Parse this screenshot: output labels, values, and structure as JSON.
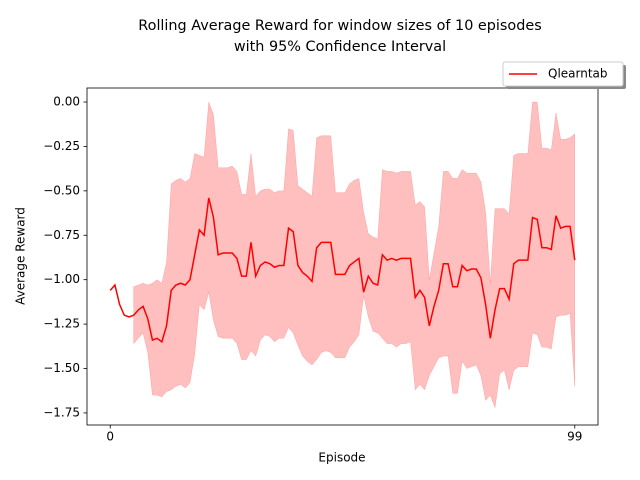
{
  "chart_data": {
    "type": "line",
    "title": [
      "Rolling Average Reward for window sizes of 10 episodes",
      "with 95% Confidence Interval"
    ],
    "x_label": "Episode",
    "y_label": "Average Reward",
    "x": [
      0,
      1,
      2,
      3,
      4,
      5,
      6,
      7,
      8,
      9,
      10,
      11,
      12,
      13,
      14,
      15,
      16,
      17,
      18,
      19,
      20,
      21,
      22,
      23,
      24,
      25,
      26,
      27,
      28,
      29,
      30,
      31,
      32,
      33,
      34,
      35,
      36,
      37,
      38,
      39,
      40,
      41,
      42,
      43,
      44,
      45,
      46,
      47,
      48,
      49,
      50,
      51,
      52,
      53,
      54,
      55,
      56,
      57,
      58,
      59,
      60,
      61,
      62,
      63,
      64,
      65,
      66,
      67,
      68,
      69,
      70,
      71,
      72,
      73,
      74,
      75,
      76,
      77,
      78,
      79,
      80,
      81,
      82,
      83,
      84,
      85,
      86,
      87,
      88,
      89,
      90,
      91,
      92,
      93,
      94,
      95,
      96,
      97,
      98,
      99
    ],
    "xlim": [
      -4.95,
      103.95
    ],
    "xticks": [
      0,
      99
    ],
    "ylim": [
      -1.818,
      0.079
    ],
    "yticks": [
      {
        "value": 0,
        "label": "0.00"
      },
      {
        "value": -0.25,
        "label": "−0.25"
      },
      {
        "value": -0.5,
        "label": "−0.50"
      },
      {
        "value": -0.75,
        "label": "−0.75"
      },
      {
        "value": -1,
        "label": "−1.00"
      },
      {
        "value": -1.25,
        "label": "−1.25"
      },
      {
        "value": -1.5,
        "label": "−1.50"
      },
      {
        "value": -1.75,
        "label": "−1.75"
      }
    ],
    "legend": "upper right outside",
    "series": [
      {
        "name": "Qlearntab",
        "color": "#ff0000",
        "values": [
          -1.06,
          -1.03,
          -1.14,
          -1.2,
          -1.21,
          -1.2,
          -1.17,
          -1.15,
          -1.22,
          -1.34,
          -1.33,
          -1.35,
          -1.26,
          -1.06,
          -1.03,
          -1.02,
          -1.03,
          -1.0,
          -0.86,
          -0.72,
          -0.75,
          -0.54,
          -0.65,
          -0.86,
          -0.85,
          -0.85,
          -0.85,
          -0.88,
          -0.98,
          -0.98,
          -0.79,
          -0.98,
          -0.92,
          -0.9,
          -0.91,
          -0.93,
          -0.92,
          -0.92,
          -0.71,
          -0.73,
          -0.92,
          -0.96,
          -0.98,
          -1.01,
          -0.82,
          -0.79,
          -0.79,
          -0.79,
          -0.97,
          -0.97,
          -0.97,
          -0.92,
          -0.9,
          -0.88,
          -1.07,
          -0.98,
          -1.02,
          -1.03,
          -0.86,
          -0.89,
          -0.88,
          -0.89,
          -0.88,
          -0.88,
          -0.88,
          -1.1,
          -1.06,
          -1.1,
          -1.26,
          -1.15,
          -1.06,
          -0.91,
          -0.91,
          -1.04,
          -1.04,
          -0.92,
          -0.95,
          -0.94,
          -0.94,
          -0.99,
          -1.14,
          -1.33,
          -1.17,
          -1.05,
          -1.05,
          -1.11,
          -0.91,
          -0.89,
          -0.89,
          -0.89,
          -0.65,
          -0.66,
          -0.82,
          -0.82,
          -0.83,
          -0.64,
          -0.71,
          -0.7,
          -0.7,
          -0.89
        ]
      }
    ],
    "band": {
      "color": "#ff0000",
      "opacity": 0.25,
      "upper": [
        null,
        null,
        null,
        null,
        null,
        -1.04,
        -1.03,
        -1.02,
        -1.03,
        -1.02,
        -1.0,
        -1.02,
        -0.9,
        -0.46,
        -0.44,
        -0.43,
        -0.45,
        -0.43,
        -0.29,
        -0.3,
        -0.31,
        0.0,
        -0.07,
        -0.37,
        -0.37,
        -0.37,
        -0.36,
        -0.39,
        -0.52,
        -0.52,
        -0.29,
        -0.53,
        -0.5,
        -0.49,
        -0.49,
        -0.51,
        -0.5,
        -0.5,
        -0.15,
        -0.16,
        -0.47,
        -0.49,
        -0.51,
        -0.53,
        -0.2,
        -0.19,
        -0.19,
        -0.19,
        -0.51,
        -0.51,
        -0.51,
        -0.46,
        -0.44,
        -0.43,
        -0.62,
        -0.74,
        -0.76,
        -0.77,
        -0.38,
        -0.39,
        -0.39,
        -0.4,
        -0.39,
        -0.39,
        -0.39,
        -0.58,
        -0.56,
        -0.59,
        -1.0,
        -0.85,
        -0.7,
        -0.39,
        -0.39,
        -0.43,
        -0.43,
        -0.38,
        -0.4,
        -0.4,
        -0.4,
        -0.45,
        -0.62,
        -1.02,
        -0.6,
        -0.6,
        -0.6,
        -0.63,
        -0.3,
        -0.29,
        -0.29,
        -0.29,
        0.0,
        0.0,
        -0.26,
        -0.26,
        -0.27,
        -0.06,
        -0.21,
        -0.21,
        -0.2,
        -0.18
      ],
      "lower": [
        null,
        null,
        null,
        null,
        null,
        -1.36,
        -1.33,
        -1.3,
        -1.41,
        -1.65,
        -1.65,
        -1.66,
        -1.63,
        -1.62,
        -1.6,
        -1.59,
        -1.61,
        -1.58,
        -1.42,
        -1.14,
        -1.17,
        -1.07,
        -1.23,
        -1.32,
        -1.33,
        -1.33,
        -1.33,
        -1.36,
        -1.45,
        -1.45,
        -1.4,
        -1.43,
        -1.34,
        -1.31,
        -1.32,
        -1.35,
        -1.33,
        -1.33,
        -1.27,
        -1.3,
        -1.37,
        -1.43,
        -1.46,
        -1.48,
        -1.45,
        -1.41,
        -1.4,
        -1.41,
        -1.44,
        -1.44,
        -1.44,
        -1.38,
        -1.35,
        -1.31,
        -1.09,
        -1.21,
        -1.29,
        -1.3,
        -1.33,
        -1.36,
        -1.36,
        -1.38,
        -1.36,
        -1.36,
        -1.35,
        -1.62,
        -1.59,
        -1.62,
        -1.54,
        -1.49,
        -1.44,
        -1.43,
        -1.43,
        -1.64,
        -1.64,
        -1.46,
        -1.5,
        -1.49,
        -1.48,
        -1.54,
        -1.68,
        -1.65,
        -1.72,
        -1.53,
        -1.51,
        -1.62,
        -1.51,
        -1.49,
        -1.49,
        -1.49,
        -1.3,
        -1.31,
        -1.38,
        -1.38,
        -1.39,
        -1.21,
        -1.2,
        -1.2,
        -1.19,
        -1.6
      ]
    }
  }
}
